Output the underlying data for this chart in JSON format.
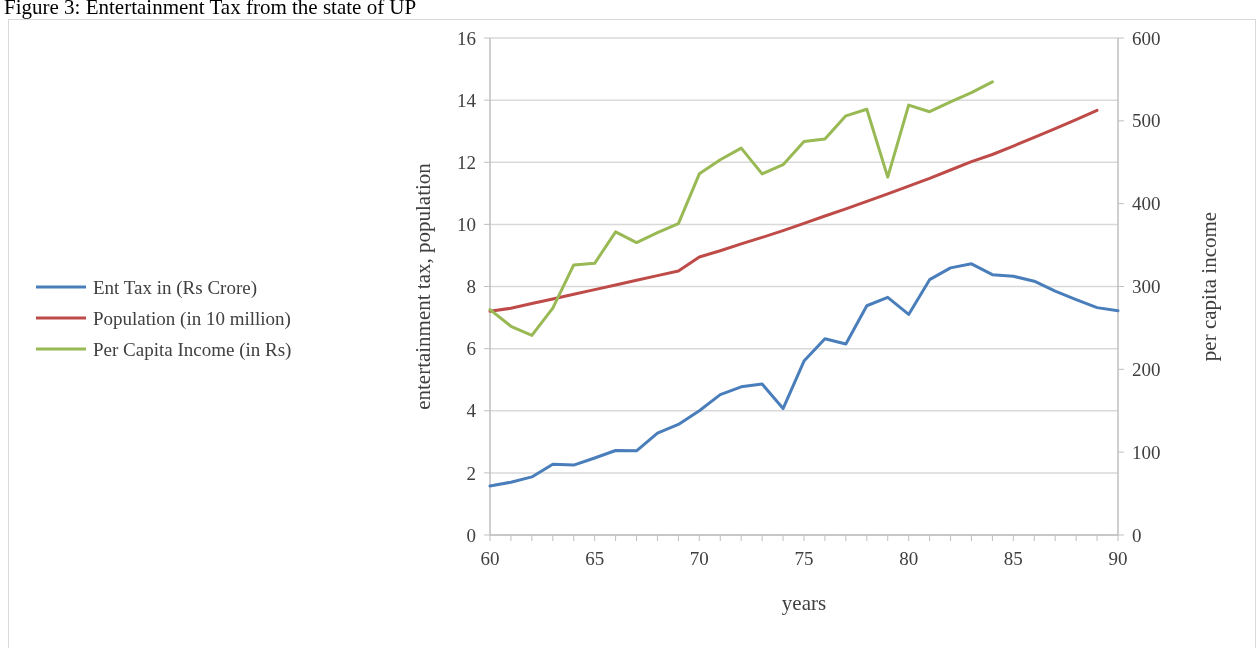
{
  "chart_data": {
    "type": "line",
    "title": "Figure 3: Entertainment Tax from the state of UP",
    "xlabel": "years",
    "ylabel": "entertainment tax, population",
    "y2label": "per capita income",
    "x": [
      60,
      61,
      62,
      63,
      64,
      65,
      66,
      67,
      68,
      69,
      70,
      71,
      72,
      73,
      74,
      75,
      76,
      77,
      78,
      79,
      80,
      81,
      82,
      83,
      84,
      85,
      86,
      87,
      88,
      89,
      90
    ],
    "series": [
      {
        "name": "Ent Tax in (Rs Crore)",
        "color": "#4a7ebb",
        "values": [
          1.58,
          1.7,
          1.87,
          2.28,
          2.25,
          2.48,
          2.72,
          2.71,
          3.28,
          3.56,
          4.0,
          4.52,
          4.77,
          4.86,
          4.07,
          5.6,
          6.32,
          6.15,
          7.38,
          7.65,
          7.1,
          8.22,
          8.6,
          8.73,
          8.38,
          8.33,
          8.17,
          7.85,
          7.58,
          7.32,
          7.22
        ]
      },
      {
        "name": "Population (in 10 million)",
        "color": "#be4b48",
        "values": [
          7.2,
          7.3,
          7.45,
          7.6,
          7.75,
          7.9,
          8.05,
          8.2,
          8.35,
          8.5,
          8.95,
          9.15,
          9.37,
          9.58,
          9.8,
          10.03,
          10.27,
          10.5,
          10.74,
          10.98,
          11.23,
          11.48,
          11.75,
          12.02,
          12.25,
          12.52,
          12.8,
          13.08,
          13.37,
          13.67,
          null
        ]
      },
      {
        "name": "Per Capita Income (in Rs)",
        "color": "#98b954",
        "axis": "y2",
        "values": [
          272,
          252,
          241,
          274,
          326,
          328,
          366,
          353,
          365,
          376,
          436,
          453,
          467,
          436,
          447,
          475,
          478,
          506,
          514,
          432,
          519,
          511,
          523,
          534,
          547,
          null,
          null,
          null,
          null,
          null,
          null
        ]
      }
    ],
    "xlim": [
      60,
      90
    ],
    "xticks": [
      60,
      65,
      70,
      75,
      80,
      85,
      90
    ],
    "ylim": [
      0,
      16
    ],
    "yticks": [
      0,
      2,
      4,
      6,
      8,
      10,
      12,
      14,
      16
    ],
    "y2lim": [
      0,
      600
    ],
    "y2ticks": [
      0,
      100,
      200,
      300,
      400,
      500,
      600
    ],
    "grid": "y",
    "legend": "left",
    "marker": "none",
    "line_style": "solid"
  }
}
